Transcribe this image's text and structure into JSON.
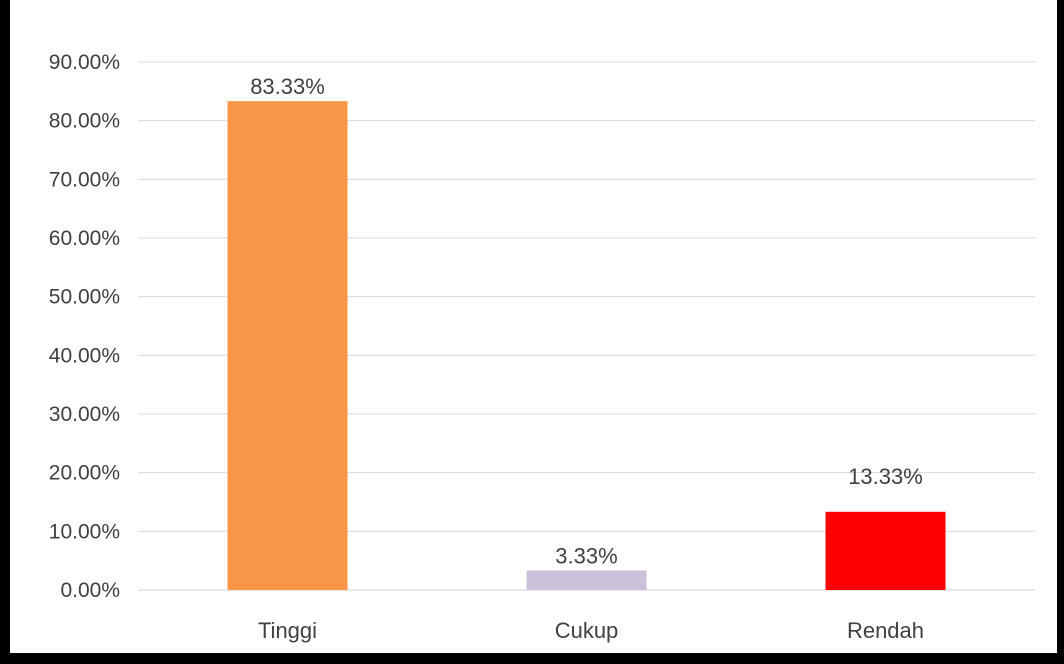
{
  "chart_data": {
    "type": "bar",
    "categories": [
      "Tinggi",
      "Cukup",
      "Rendah"
    ],
    "values": [
      83.33,
      3.33,
      13.33
    ],
    "data_labels": [
      "83.33%",
      "3.33%",
      "13.33%"
    ],
    "colors": [
      "#f79646",
      "#ccc1da",
      "#ff0000"
    ],
    "ylim": [
      0,
      90
    ],
    "yticks": [
      0,
      10,
      20,
      30,
      40,
      50,
      60,
      70,
      80,
      90
    ],
    "ytick_labels": [
      "0.00%",
      "10.00%",
      "20.00%",
      "30.00%",
      "40.00%",
      "50.00%",
      "60.00%",
      "70.00%",
      "80.00%",
      "90.00%"
    ],
    "grid": true,
    "legend": "none"
  }
}
